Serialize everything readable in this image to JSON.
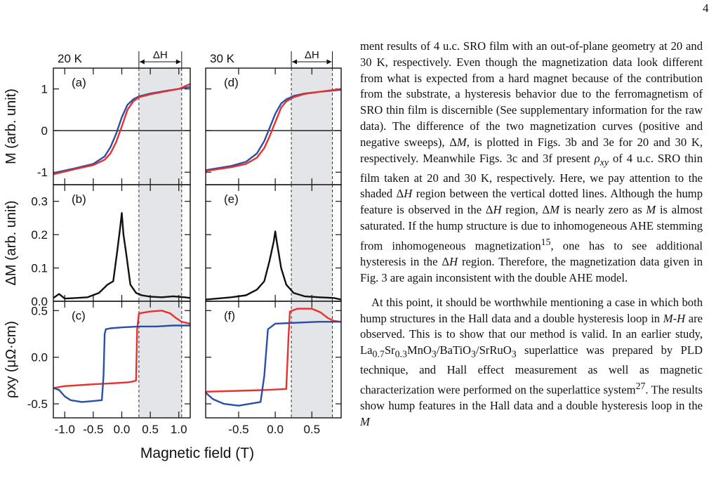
{
  "page": {
    "number": "4"
  },
  "figure": {
    "temps": [
      "20 K",
      "30 K"
    ],
    "delta_h_label": "ΔH",
    "panel_labels": [
      "(a)",
      "(b)",
      "(c)",
      "(d)",
      "(e)",
      "(f)"
    ],
    "y_labels": [
      "M (arb. unit)",
      "ΔM (arb. unit)",
      "ρxy (μΩ·cm)"
    ],
    "x_label": "Magnetic field (T)",
    "colors": {
      "up_sweep": "#e8302c",
      "down_sweep": "#2a4fa8",
      "delta": "#111111",
      "shade": "#e4e5e8"
    }
  },
  "chart_data": [
    {
      "type": "line",
      "panel": "(a)",
      "label_top": "20 K",
      "xlim": [
        -1.2,
        1.2
      ],
      "ylim": [
        -1.3,
        1.5
      ],
      "yticks": [
        "1",
        "0",
        "-1"
      ],
      "series": [
        {
          "color": "blue",
          "x": [
            -1.2,
            -0.8,
            -0.5,
            -0.3,
            -0.2,
            -0.1,
            0,
            0.1,
            0.2,
            0.3,
            0.5,
            0.8,
            1.0,
            1.2
          ],
          "y": [
            -1.02,
            -0.9,
            -0.8,
            -0.62,
            -0.4,
            -0.08,
            0.32,
            0.62,
            0.75,
            0.82,
            0.89,
            0.96,
            1.0,
            1.05
          ]
        },
        {
          "color": "red",
          "x": [
            -1.2,
            -0.8,
            -0.5,
            -0.3,
            -0.2,
            -0.1,
            0,
            0.1,
            0.2,
            0.3,
            0.5,
            0.8,
            1.0,
            1.2
          ],
          "y": [
            -1.05,
            -0.92,
            -0.83,
            -0.7,
            -0.55,
            -0.28,
            0.1,
            0.5,
            0.7,
            0.8,
            0.87,
            0.95,
            1.0,
            1.12
          ]
        }
      ],
      "shaded_region": [
        0.3,
        1.05
      ]
    },
    {
      "type": "line",
      "panel": "(b)",
      "xlim": [
        -1.2,
        1.2
      ],
      "ylim": [
        0,
        0.35
      ],
      "yticks": [
        "0.3",
        "0.2",
        "0.1",
        "0.0"
      ],
      "series": [
        {
          "color": "black",
          "x": [
            -1.2,
            -1.1,
            -1.0,
            -0.8,
            -0.6,
            -0.4,
            -0.25,
            -0.15,
            -0.08,
            -0.03,
            0,
            0.03,
            0.08,
            0.15,
            0.25,
            0.35,
            0.5,
            0.7,
            0.9,
            1.1,
            1.2
          ],
          "y": [
            0.01,
            0.022,
            0.008,
            0.01,
            0.012,
            0.025,
            0.05,
            0.06,
            0.15,
            0.22,
            0.265,
            0.2,
            0.14,
            0.05,
            0.025,
            0.018,
            0.014,
            0.012,
            0.015,
            0.012,
            0.01
          ]
        }
      ],
      "shaded_region": [
        0.3,
        1.05
      ]
    },
    {
      "type": "line",
      "panel": "(c)",
      "xlim": [
        -1.2,
        1.2
      ],
      "ylim": [
        -0.65,
        0.6
      ],
      "xticks": [
        "-1.0",
        "-0.5",
        "0.0",
        "0.5",
        "1.0"
      ],
      "yticks": [
        "0.5",
        "0.0",
        "-0.5"
      ],
      "series": [
        {
          "color": "red",
          "x": [
            -1.2,
            -1.0,
            -0.5,
            -0.2,
            0.1,
            0.2,
            0.25,
            0.27,
            0.3,
            0.5,
            0.7,
            0.85,
            0.95,
            1.05,
            1.2
          ],
          "y": [
            -0.33,
            -0.31,
            -0.29,
            -0.28,
            -0.27,
            -0.26,
            -0.25,
            0.3,
            0.47,
            0.49,
            0.5,
            0.47,
            0.42,
            0.38,
            0.36
          ]
        },
        {
          "color": "blue",
          "x": [
            -1.2,
            -1.1,
            -1.0,
            -0.9,
            -0.7,
            -0.5,
            -0.35,
            -0.32,
            -0.3,
            -0.28,
            -0.2,
            0.0,
            0.3,
            0.6,
            0.9,
            1.2
          ],
          "y": [
            -0.33,
            -0.35,
            -0.42,
            -0.46,
            -0.48,
            -0.47,
            -0.46,
            -0.2,
            0.25,
            0.3,
            0.31,
            0.32,
            0.33,
            0.33,
            0.34,
            0.34
          ]
        }
      ],
      "shaded_region": [
        0.3,
        1.05
      ]
    },
    {
      "type": "line",
      "panel": "(d)",
      "label_top": "30 K",
      "xlim": [
        -0.95,
        0.9
      ],
      "ylim": [
        -1.3,
        1.5
      ],
      "series": [
        {
          "color": "blue",
          "x": [
            -0.95,
            -0.6,
            -0.4,
            -0.25,
            -0.15,
            -0.08,
            0,
            0.08,
            0.15,
            0.25,
            0.4,
            0.6,
            0.9
          ],
          "y": [
            -0.95,
            -0.85,
            -0.75,
            -0.55,
            -0.25,
            0.05,
            0.4,
            0.65,
            0.75,
            0.83,
            0.89,
            0.93,
            0.98
          ]
        },
        {
          "color": "red",
          "x": [
            -0.95,
            -0.6,
            -0.4,
            -0.25,
            -0.15,
            -0.08,
            0,
            0.08,
            0.15,
            0.25,
            0.4,
            0.6,
            0.9
          ],
          "y": [
            -0.97,
            -0.88,
            -0.8,
            -0.65,
            -0.42,
            -0.15,
            0.2,
            0.55,
            0.7,
            0.8,
            0.88,
            0.93,
            1.0
          ]
        }
      ],
      "shaded_region": [
        0.22,
        0.78
      ]
    },
    {
      "type": "line",
      "panel": "(e)",
      "xlim": [
        -0.95,
        0.9
      ],
      "ylim": [
        0,
        0.35
      ],
      "series": [
        {
          "color": "black",
          "x": [
            -0.95,
            -0.8,
            -0.6,
            -0.4,
            -0.25,
            -0.15,
            -0.08,
            -0.02,
            0.0,
            0.02,
            0.08,
            0.15,
            0.25,
            0.4,
            0.6,
            0.8,
            0.9
          ],
          "y": [
            0.005,
            0.008,
            0.012,
            0.018,
            0.035,
            0.06,
            0.12,
            0.18,
            0.21,
            0.18,
            0.1,
            0.05,
            0.025,
            0.015,
            0.012,
            0.01,
            0.005
          ]
        }
      ],
      "shaded_region": [
        0.22,
        0.78
      ]
    },
    {
      "type": "line",
      "panel": "(f)",
      "xlim": [
        -0.95,
        0.9
      ],
      "ylim": [
        -0.65,
        0.6
      ],
      "xticks": [
        "-0.5",
        "0.0",
        "0.5"
      ],
      "series": [
        {
          "color": "red",
          "x": [
            -0.95,
            -0.5,
            -0.1,
            0.15,
            0.18,
            0.2,
            0.3,
            0.5,
            0.62,
            0.72,
            0.8,
            0.9
          ],
          "y": [
            -0.37,
            -0.36,
            -0.35,
            -0.34,
            0.2,
            0.49,
            0.52,
            0.52,
            0.48,
            0.42,
            0.39,
            0.38
          ]
        },
        {
          "color": "blue",
          "x": [
            -0.95,
            -0.85,
            -0.7,
            -0.5,
            -0.2,
            -0.15,
            -0.12,
            -0.1,
            0.0,
            0.3,
            0.6,
            0.9
          ],
          "y": [
            -0.38,
            -0.45,
            -0.5,
            -0.52,
            -0.48,
            -0.2,
            0.1,
            0.3,
            0.36,
            0.37,
            0.38,
            0.38
          ]
        }
      ],
      "shaded_region": [
        0.22,
        0.78
      ]
    }
  ],
  "body_text": {
    "p1_html": "ment results of 4 u.c. SRO film with an out-of-plane geometry at 20 and 30 K, respectively. Even though the magnetization data look different from what is expected from a hard magnet because of the contribution from the substrate, a hysteresis behavior due to the ferromagnetism of SRO thin film is discernible (See supplementary information for the raw data). The difference of the two magnetization curves (positive and negative sweeps), Δ<i>M</i>, is plotted in Figs. 3b and 3e for 20 and 30 K, respectively. Meanwhile Figs. 3c and 3f present <i>ρ<sub>xy</sub></i> of 4 u.c. SRO thin film taken at 20 and 30 K, respectively. Here, we pay attention to the shaded Δ<i>H</i> region between the vertical dotted lines. Although the hump feature is observed in the Δ<i>H</i> region, Δ<i>M</i> is nearly zero as <i>M</i> is almost saturated. If the hump structure is due to inhomogeneous AHE stemming from inhomogeneous magnetization<sup>15</sup>, one has to see additional hysteresis in the Δ<i>H</i> region. Therefore, the magnetization data given in Fig. 3 are again inconsistent with the double AHE model.",
    "p2_html": "At this point, it should be worthwhile mentioning a case in which both hump structures in the Hall data and a double hysteresis loop in <i>M</i>-<i>H</i> are observed. This is to show that our method is valid. In an earlier study, La<sub>0.7</sub>Sr<sub>0.3</sub>MnO<sub>3</sub>/BaTiO<sub>3</sub>/SrRuO<sub>3</sub> superlattice was prepared by PLD technique, and Hall effect measurement as well as magnetic characterization were performed on the superlattice system<sup>27</sup>. The results show hump features in the Hall data and a double hysteresis loop in the <i>M</i>"
  }
}
